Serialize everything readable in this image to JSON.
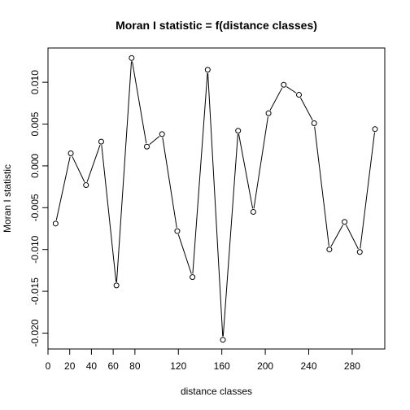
{
  "chart_data": {
    "type": "line",
    "title": "Moran I statistic = f(distance classes)",
    "xlabel": "distance classes",
    "ylabel": "Moran I statistic",
    "xlim": [
      0,
      310
    ],
    "ylim": [
      -0.0219,
      0.0141
    ],
    "x_ticks": [
      0,
      20,
      40,
      60,
      80,
      120,
      160,
      200,
      240,
      280
    ],
    "x_tick_labels": [
      "0",
      "20",
      "40",
      "60",
      "80",
      "120",
      "160",
      "200",
      "240",
      "280"
    ],
    "y_ticks": [
      -0.02,
      -0.015,
      -0.01,
      -0.005,
      0.0,
      0.005,
      0.01
    ],
    "y_tick_labels": [
      "-0.020",
      "-0.015",
      "-0.010",
      "-0.005",
      "0.000",
      "0.005",
      "0.010"
    ],
    "marker": "open-circle",
    "line_color": "#000000",
    "series": [
      {
        "x": [
          7,
          21,
          35,
          49,
          63,
          77,
          91,
          105,
          119,
          133,
          147,
          161,
          175,
          189,
          203,
          217,
          231,
          245,
          259,
          273,
          287,
          301
        ],
        "y": [
          -0.0069,
          0.0015,
          -0.0023,
          0.0029,
          -0.0143,
          0.0129,
          0.0023,
          0.0038,
          -0.0078,
          -0.0133,
          0.0115,
          -0.0208,
          0.0042,
          -0.0055,
          0.0063,
          0.0097,
          0.0085,
          0.0051,
          -0.01,
          -0.0067,
          -0.0103,
          0.0044
        ]
      }
    ]
  }
}
